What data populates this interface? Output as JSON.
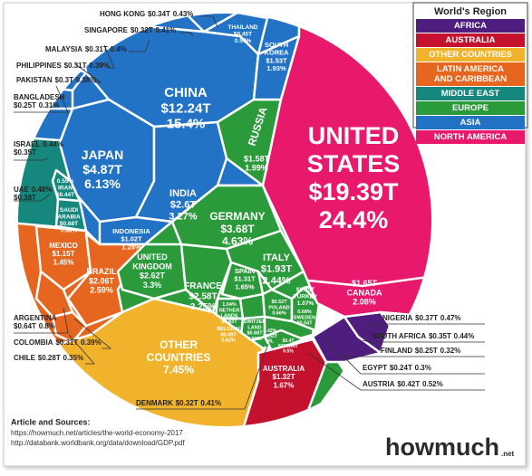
{
  "legend": {
    "title": "World's Region",
    "items": [
      {
        "label": [
          "AFRICA"
        ],
        "color": "#4e1d7e"
      },
      {
        "label": [
          "AUSTRALIA"
        ],
        "color": "#c4122e"
      },
      {
        "label": [
          "OTHER COUNTRIES"
        ],
        "color": "#f1b32b"
      },
      {
        "label": [
          "LATIN AMERICA",
          "AND CARIBBEAN"
        ],
        "color": "#e6661f"
      },
      {
        "label": [
          "MIDDLE EAST"
        ],
        "color": "#16877c"
      },
      {
        "label": [
          "EUROPE"
        ],
        "color": "#2b9a3b"
      },
      {
        "label": [
          "ASIA"
        ],
        "color": "#2272c6"
      },
      {
        "label": [
          "NORTH AMERICA"
        ],
        "color": "#e8196d"
      }
    ]
  },
  "countries": [
    {
      "name": [
        "CHINA"
      ],
      "gdp": "$12.24T",
      "share": "15.4%",
      "region": 6
    },
    {
      "name": [
        "UNITED",
        "STATES"
      ],
      "gdp": "$19.39T",
      "share": "24.4%",
      "region": 7
    },
    {
      "name": [
        "JAPAN"
      ],
      "gdp": "$4.87T",
      "share": "6.13%",
      "region": 6
    },
    {
      "name": [
        "INDIA"
      ],
      "gdp": "$2.6T",
      "share": "3.27%",
      "region": 6
    },
    {
      "name": [
        "RUSSIA"
      ],
      "gdp": "$1.58T",
      "share": "1.99%",
      "region": 5
    },
    {
      "name": [
        "SOUTH",
        "KOREA"
      ],
      "gdp": "$1.53T",
      "share": "1.93%",
      "region": 6
    },
    {
      "name": [
        "THAILAND"
      ],
      "gdp": "$0.45T",
      "share": "0.57%",
      "region": 6
    },
    {
      "name": [
        "INDONESIA"
      ],
      "gdp": "$1.02T",
      "share": "1.28%",
      "region": 6
    },
    {
      "name": [
        "HONG KONG"
      ],
      "gdp": "$0.34T",
      "share": "0.43%",
      "region": 6
    },
    {
      "name": [
        "SINGAPORE"
      ],
      "gdp": "$0.32T",
      "share": "0.41%",
      "region": 6
    },
    {
      "name": [
        "MALAYSIA"
      ],
      "gdp": "$0.31T",
      "share": "0.4%",
      "region": 6
    },
    {
      "name": [
        "PHILIPPINES"
      ],
      "gdp": "$0.31T",
      "share": "0.39%",
      "region": 6
    },
    {
      "name": [
        "PAKISTAN"
      ],
      "gdp": "$0.3T",
      "share": "0.38%",
      "region": 6
    },
    {
      "name": [
        "BANGLADESH"
      ],
      "gdp": "$0.25T",
      "share": "0.31%",
      "region": 6
    },
    {
      "name": [
        "ISRAEL"
      ],
      "gdp": "$0.35T",
      "share": "0.44%",
      "region": 4
    },
    {
      "name": [
        "UAE"
      ],
      "gdp": "$0.38T",
      "share": "0.48%",
      "region": 4
    },
    {
      "name": [
        "IRAN"
      ],
      "gdp": "$0.44T",
      "share": "0.55%",
      "region": 4
    },
    {
      "name": [
        "SAUDI",
        "ARABIA"
      ],
      "gdp": "$0.68T",
      "share": "0.86%",
      "region": 4
    },
    {
      "name": [
        "MEXICO"
      ],
      "gdp": "$1.15T",
      "share": "1.45%",
      "region": 3
    },
    {
      "name": [
        "BRAZIL"
      ],
      "gdp": "$2.06T",
      "share": "2.59%",
      "region": 3
    },
    {
      "name": [
        "ARGENTINA"
      ],
      "gdp": "$0.64T",
      "share": "0.8%",
      "region": 3
    },
    {
      "name": [
        "COLOMBIA"
      ],
      "gdp": "$0.31T",
      "share": "0.39%",
      "region": 3
    },
    {
      "name": [
        "CHILE"
      ],
      "gdp": "$0.28T",
      "share": "0.35%",
      "region": 3
    },
    {
      "name": [
        "GERMANY"
      ],
      "gdp": "$3.68T",
      "share": "4.63%",
      "region": 5
    },
    {
      "name": [
        "UNITED",
        "KINGDOM"
      ],
      "gdp": "$2.62T",
      "share": "3.3%",
      "region": 5
    },
    {
      "name": [
        "FRANCE"
      ],
      "gdp": "$2.58T",
      "share": "3.25%",
      "region": 5
    },
    {
      "name": [
        "ITALY"
      ],
      "gdp": "$1.93T",
      "share": "2.44%",
      "region": 5
    },
    {
      "name": [
        "SPAIN"
      ],
      "gdp": "$1.31T",
      "share": "1.65%",
      "region": 5
    },
    {
      "name": [
        "NETHER",
        "LANDS"
      ],
      "gdp": "$0.83T",
      "share": "1.04%",
      "region": 5
    },
    {
      "name": [
        "BELGIUM"
      ],
      "gdp": "$0.49T",
      "share": "0.62%",
      "region": 5
    },
    {
      "name": [
        "SWITZER",
        "LAND"
      ],
      "gdp": "$0.68T",
      "share": "0.86%",
      "region": 5
    },
    {
      "name": [
        "POLAND"
      ],
      "gdp": "$0.52T",
      "share": "0.66%",
      "region": 5
    },
    {
      "name": [
        "SWEDEN"
      ],
      "gdp": "$0.54T",
      "share": "0.68%",
      "region": 5
    },
    {
      "name": [
        "TURKEY"
      ],
      "gdp": "$0.85T",
      "share": "1.07%",
      "region": 5
    },
    {
      "name": [
        "IRL"
      ],
      "gdp": "$0.33T",
      "share": "0.42%",
      "region": 5
    },
    {
      "name": [
        "NORWAY"
      ],
      "gdp": "$0.4T",
      "share": "0.5%",
      "region": 5
    },
    {
      "name": [
        "DENMARK"
      ],
      "gdp": "$0.32T",
      "share": "0.41%",
      "region": 5
    },
    {
      "name": [
        "OTHER",
        "COUNTRIES"
      ],
      "share": "7.45%",
      "region": 2
    },
    {
      "name": [
        "AUSTRALIA"
      ],
      "gdp": "$1.32T",
      "share": "1.67%",
      "region": 1
    },
    {
      "name": [
        "CANADA"
      ],
      "gdp": "$1.65T",
      "share": "2.08%",
      "region": 7
    },
    {
      "name": [
        "NIGERIA"
      ],
      "gdp": "$0.37T",
      "share": "0.47%",
      "region": 0
    },
    {
      "name": [
        "SOUTH AFRICA"
      ],
      "gdp": "$0.35T",
      "share": "0.44%",
      "region": 0
    },
    {
      "name": [
        "FINLAND"
      ],
      "gdp": "$0.25T",
      "share": "0.32%",
      "region": 5
    },
    {
      "name": [
        "EGYPT"
      ],
      "gdp": "$0.24T",
      "share": "0.3%",
      "region": 0
    },
    {
      "name": [
        "AUSTRIA"
      ],
      "gdp": "$0.42T",
      "share": "0.52%",
      "region": 5
    }
  ],
  "footer": {
    "heading": "Article and Sources:",
    "sources": [
      "https://howmuch.net/articles/the-world-economy-2017",
      "http://databank.worldbank.org/data/download/GDP.pdf"
    ]
  },
  "logo": {
    "brand": "howmuch",
    "suffix": ".net"
  }
}
